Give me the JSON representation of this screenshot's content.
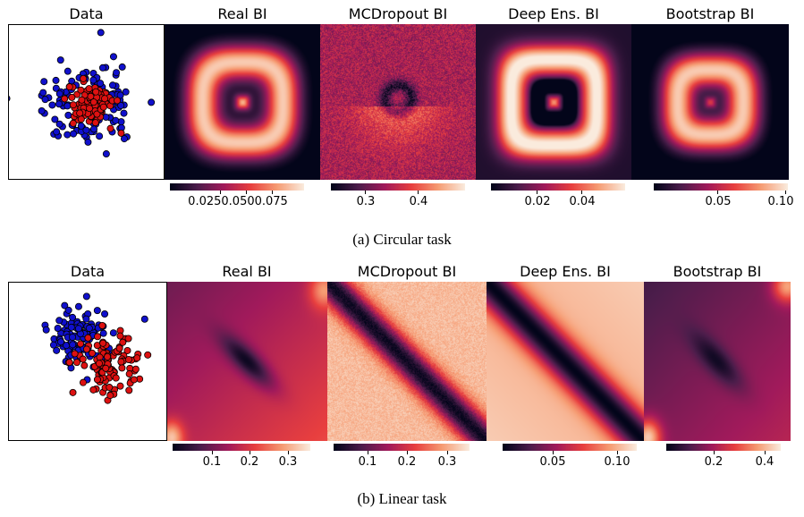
{
  "figure": {
    "rows": [
      {
        "caption": "(a) Circular task",
        "panels": [
          {
            "title": "Data",
            "kind": "scatter"
          },
          {
            "title": "Real BI",
            "kind": "heatmap",
            "pattern": "ring"
          },
          {
            "title": "MCDropout BI",
            "kind": "heatmap",
            "pattern": "noisy-ring"
          },
          {
            "title": "Deep Ens. BI",
            "kind": "heatmap",
            "pattern": "square-ring"
          },
          {
            "title": "Bootstrap BI",
            "kind": "heatmap",
            "pattern": "ring-small"
          }
        ],
        "colorbars": [
          {
            "ticks": [
              "0.025",
              "0.050",
              "0.075"
            ],
            "joined_label": "0.0250.0500.075"
          },
          {
            "ticks": [
              "0.3",
              "0.4"
            ]
          },
          {
            "ticks": [
              "0.02",
              "0.04"
            ]
          },
          {
            "ticks": [
              "0.05",
              "0.10"
            ]
          }
        ]
      },
      {
        "caption": "(b) Linear task",
        "panels": [
          {
            "title": "Data",
            "kind": "scatter"
          },
          {
            "title": "Real BI",
            "kind": "heatmap",
            "pattern": "diag-blob"
          },
          {
            "title": "MCDropout BI",
            "kind": "heatmap",
            "pattern": "diag-band"
          },
          {
            "title": "Deep Ens. BI",
            "kind": "heatmap",
            "pattern": "diag-band-dark"
          },
          {
            "title": "Bootstrap BI",
            "kind": "heatmap",
            "pattern": "diag-blob-dark"
          }
        ],
        "colorbars": [
          {
            "ticks": [
              "0.1",
              "0.2",
              "0.3"
            ]
          },
          {
            "ticks": [
              "0.1",
              "0.2",
              "0.3"
            ]
          },
          {
            "ticks": [
              "0.05",
              "0.10"
            ]
          },
          {
            "ticks": [
              "0.2",
              "0.4"
            ]
          }
        ]
      }
    ],
    "colors": {
      "class_a": "#1010cc",
      "class_b": "#dd1111",
      "colormap": [
        "#03051a",
        "#4c1d4b",
        "#a11a5b",
        "#e83f3f",
        "#f69c73",
        "#faebdd"
      ]
    }
  }
}
